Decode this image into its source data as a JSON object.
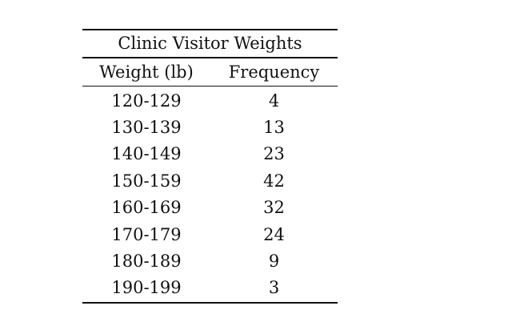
{
  "chart_data": {
    "type": "table",
    "title": "Clinic Visitor Weights",
    "columns": [
      "Weight (lb)",
      "Frequency"
    ],
    "rows": [
      {
        "weight": "120-129",
        "frequency": "4"
      },
      {
        "weight": "130-139",
        "frequency": "13"
      },
      {
        "weight": "140-149",
        "frequency": "23"
      },
      {
        "weight": "150-159",
        "frequency": "42"
      },
      {
        "weight": "160-169",
        "frequency": "32"
      },
      {
        "weight": "170-179",
        "frequency": "24"
      },
      {
        "weight": "180-189",
        "frequency": "9"
      },
      {
        "weight": "190-199",
        "frequency": "3"
      }
    ]
  }
}
